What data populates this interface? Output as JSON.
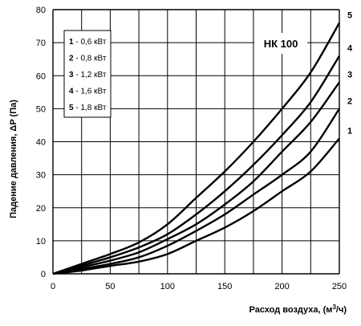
{
  "chart_data": {
    "type": "line",
    "title": "",
    "model_label": "НК  100",
    "xlabel_text": "Расход воздуха, (м",
    "xlabel_sup": "3",
    "xlabel_end": "/ч)",
    "ylabel": "Падение давления, ΔP (Па)",
    "xlim": [
      0,
      250
    ],
    "ylim": [
      0,
      80
    ],
    "x_ticks": [
      0,
      50,
      100,
      150,
      200,
      250
    ],
    "y_ticks": [
      0,
      10,
      20,
      30,
      40,
      50,
      60,
      70,
      80
    ],
    "x_grid_step": 25,
    "y_grid_step": 10,
    "grid": true,
    "series": [
      {
        "name": "1",
        "legend_value": "- 0,6 кВт",
        "x": [
          0,
          25,
          50,
          75,
          100,
          125,
          150,
          175,
          200,
          225,
          250
        ],
        "y": [
          0,
          1.0,
          2.4,
          3.7,
          6.0,
          10.0,
          14.0,
          19.0,
          25.0,
          31.0,
          41.0
        ]
      },
      {
        "name": "2",
        "legend_value": "- 0,8 кВт",
        "x": [
          0,
          25,
          50,
          75,
          100,
          125,
          150,
          175,
          200,
          225,
          250
        ],
        "y": [
          0,
          1.5,
          3.0,
          5.0,
          8.5,
          13.0,
          18.0,
          24.0,
          30.0,
          37.0,
          50.0
        ]
      },
      {
        "name": "3",
        "legend_value": "- 1,2 кВт",
        "x": [
          0,
          25,
          50,
          75,
          100,
          125,
          150,
          175,
          200,
          225,
          250
        ],
        "y": [
          0,
          2.0,
          4.0,
          6.5,
          10.5,
          15.0,
          21.0,
          28.0,
          37.0,
          46.0,
          58.0
        ]
      },
      {
        "name": "4",
        "legend_value": "- 1,6 кВт",
        "x": [
          0,
          25,
          50,
          75,
          100,
          125,
          150,
          175,
          200,
          225,
          250
        ],
        "y": [
          0,
          2.5,
          5.0,
          8.0,
          12.0,
          18.0,
          25.0,
          33.0,
          42.0,
          52.0,
          66.0
        ]
      },
      {
        "name": "5",
        "legend_value": "- 1,8 кВт",
        "x": [
          0,
          25,
          50,
          75,
          100,
          125,
          150,
          175,
          200,
          225,
          250
        ],
        "y": [
          0,
          3.0,
          6.0,
          9.5,
          15.0,
          23.0,
          31.0,
          40.0,
          50.0,
          61.0,
          76.0
        ]
      }
    ],
    "legend_position": "top-left"
  }
}
